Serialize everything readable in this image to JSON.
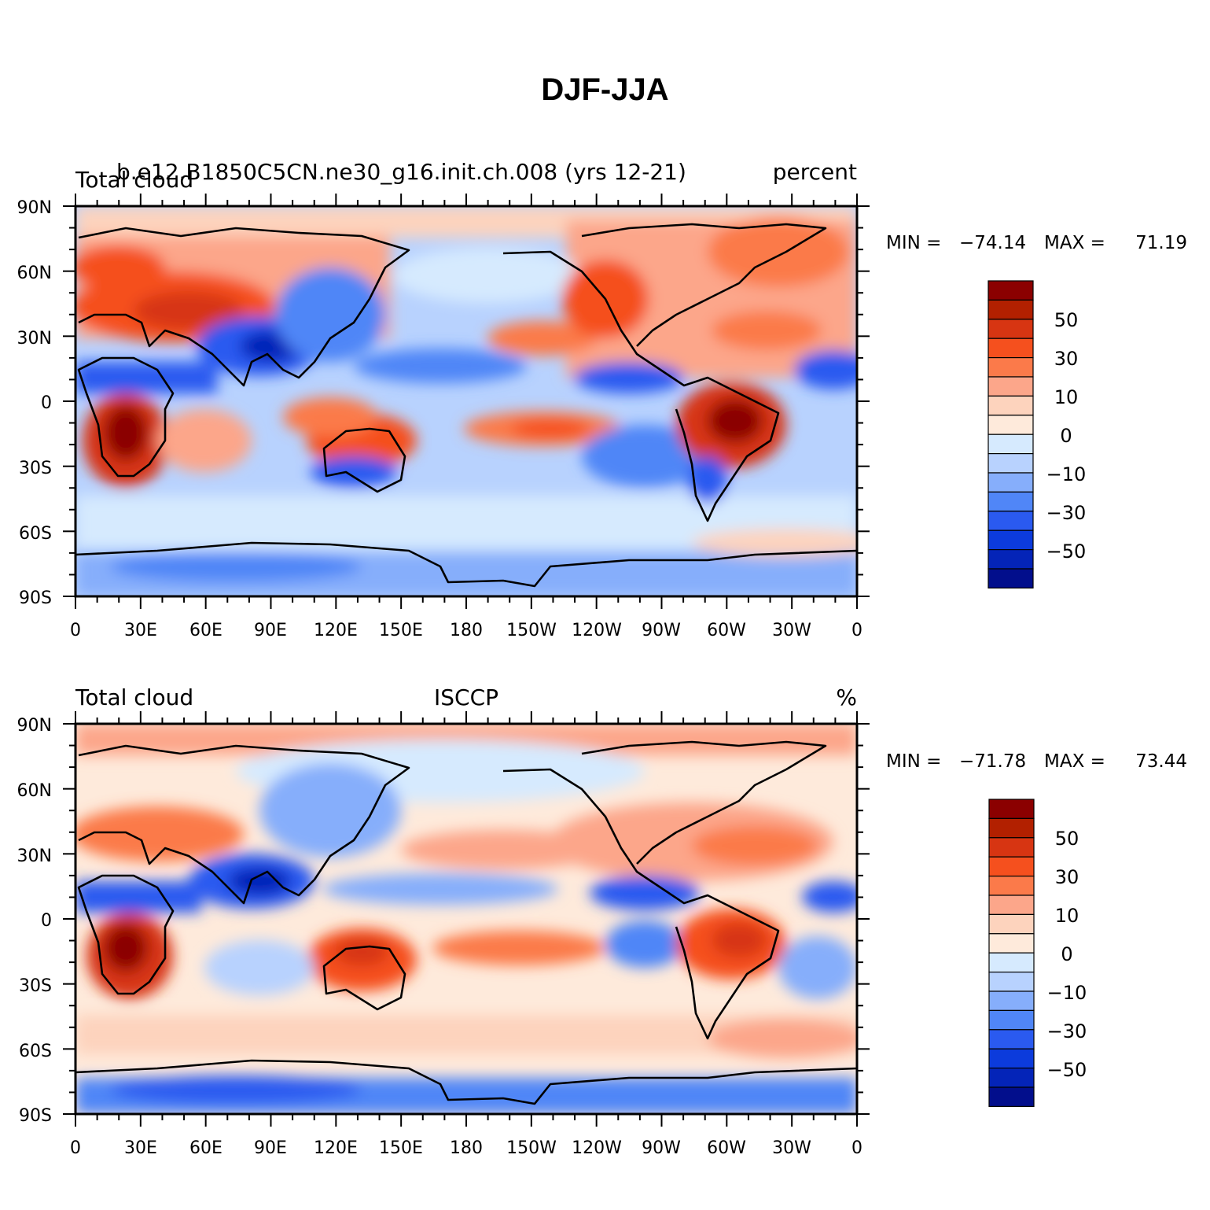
{
  "figure": {
    "title": "DJF-JJA"
  },
  "axes": {
    "lat_labels": [
      "90N",
      "60N",
      "30N",
      "0",
      "30S",
      "60S",
      "90S"
    ],
    "lon_labels": [
      "0",
      "30E",
      "60E",
      "90E",
      "120E",
      "150E",
      "180",
      "150W",
      "120W",
      "90W",
      "60W",
      "30W",
      "0"
    ]
  },
  "colorbar": {
    "labels": [
      "50",
      "30",
      "10",
      "0",
      "−10",
      "−30",
      "−50"
    ],
    "colors": [
      "#8b0000",
      "#b22000",
      "#d73512",
      "#f5501e",
      "#fb7a4a",
      "#fca68a",
      "#fdd3bd",
      "#feeadb",
      "#d6eafe",
      "#b8d2fe",
      "#86aefb",
      "#5086f7",
      "#2a5af0",
      "#0c3bdc",
      "#0424b8",
      "#020e8c"
    ]
  },
  "panels": [
    {
      "left_text": "Total cloud",
      "center_text": "b.e12.B1850C5CN.ne30_g16.init.ch.008 (yrs 12-21)",
      "right_text": "percent",
      "min_label": "MIN =",
      "min_value": "−74.14",
      "max_label": "MAX =",
      "max_value": "71.19"
    },
    {
      "left_text": "Total cloud",
      "center_text": "ISCCP",
      "right_text": "%",
      "min_label": "MIN =",
      "min_value": "−71.78",
      "max_label": "MAX =",
      "max_value": "73.44"
    }
  ]
}
